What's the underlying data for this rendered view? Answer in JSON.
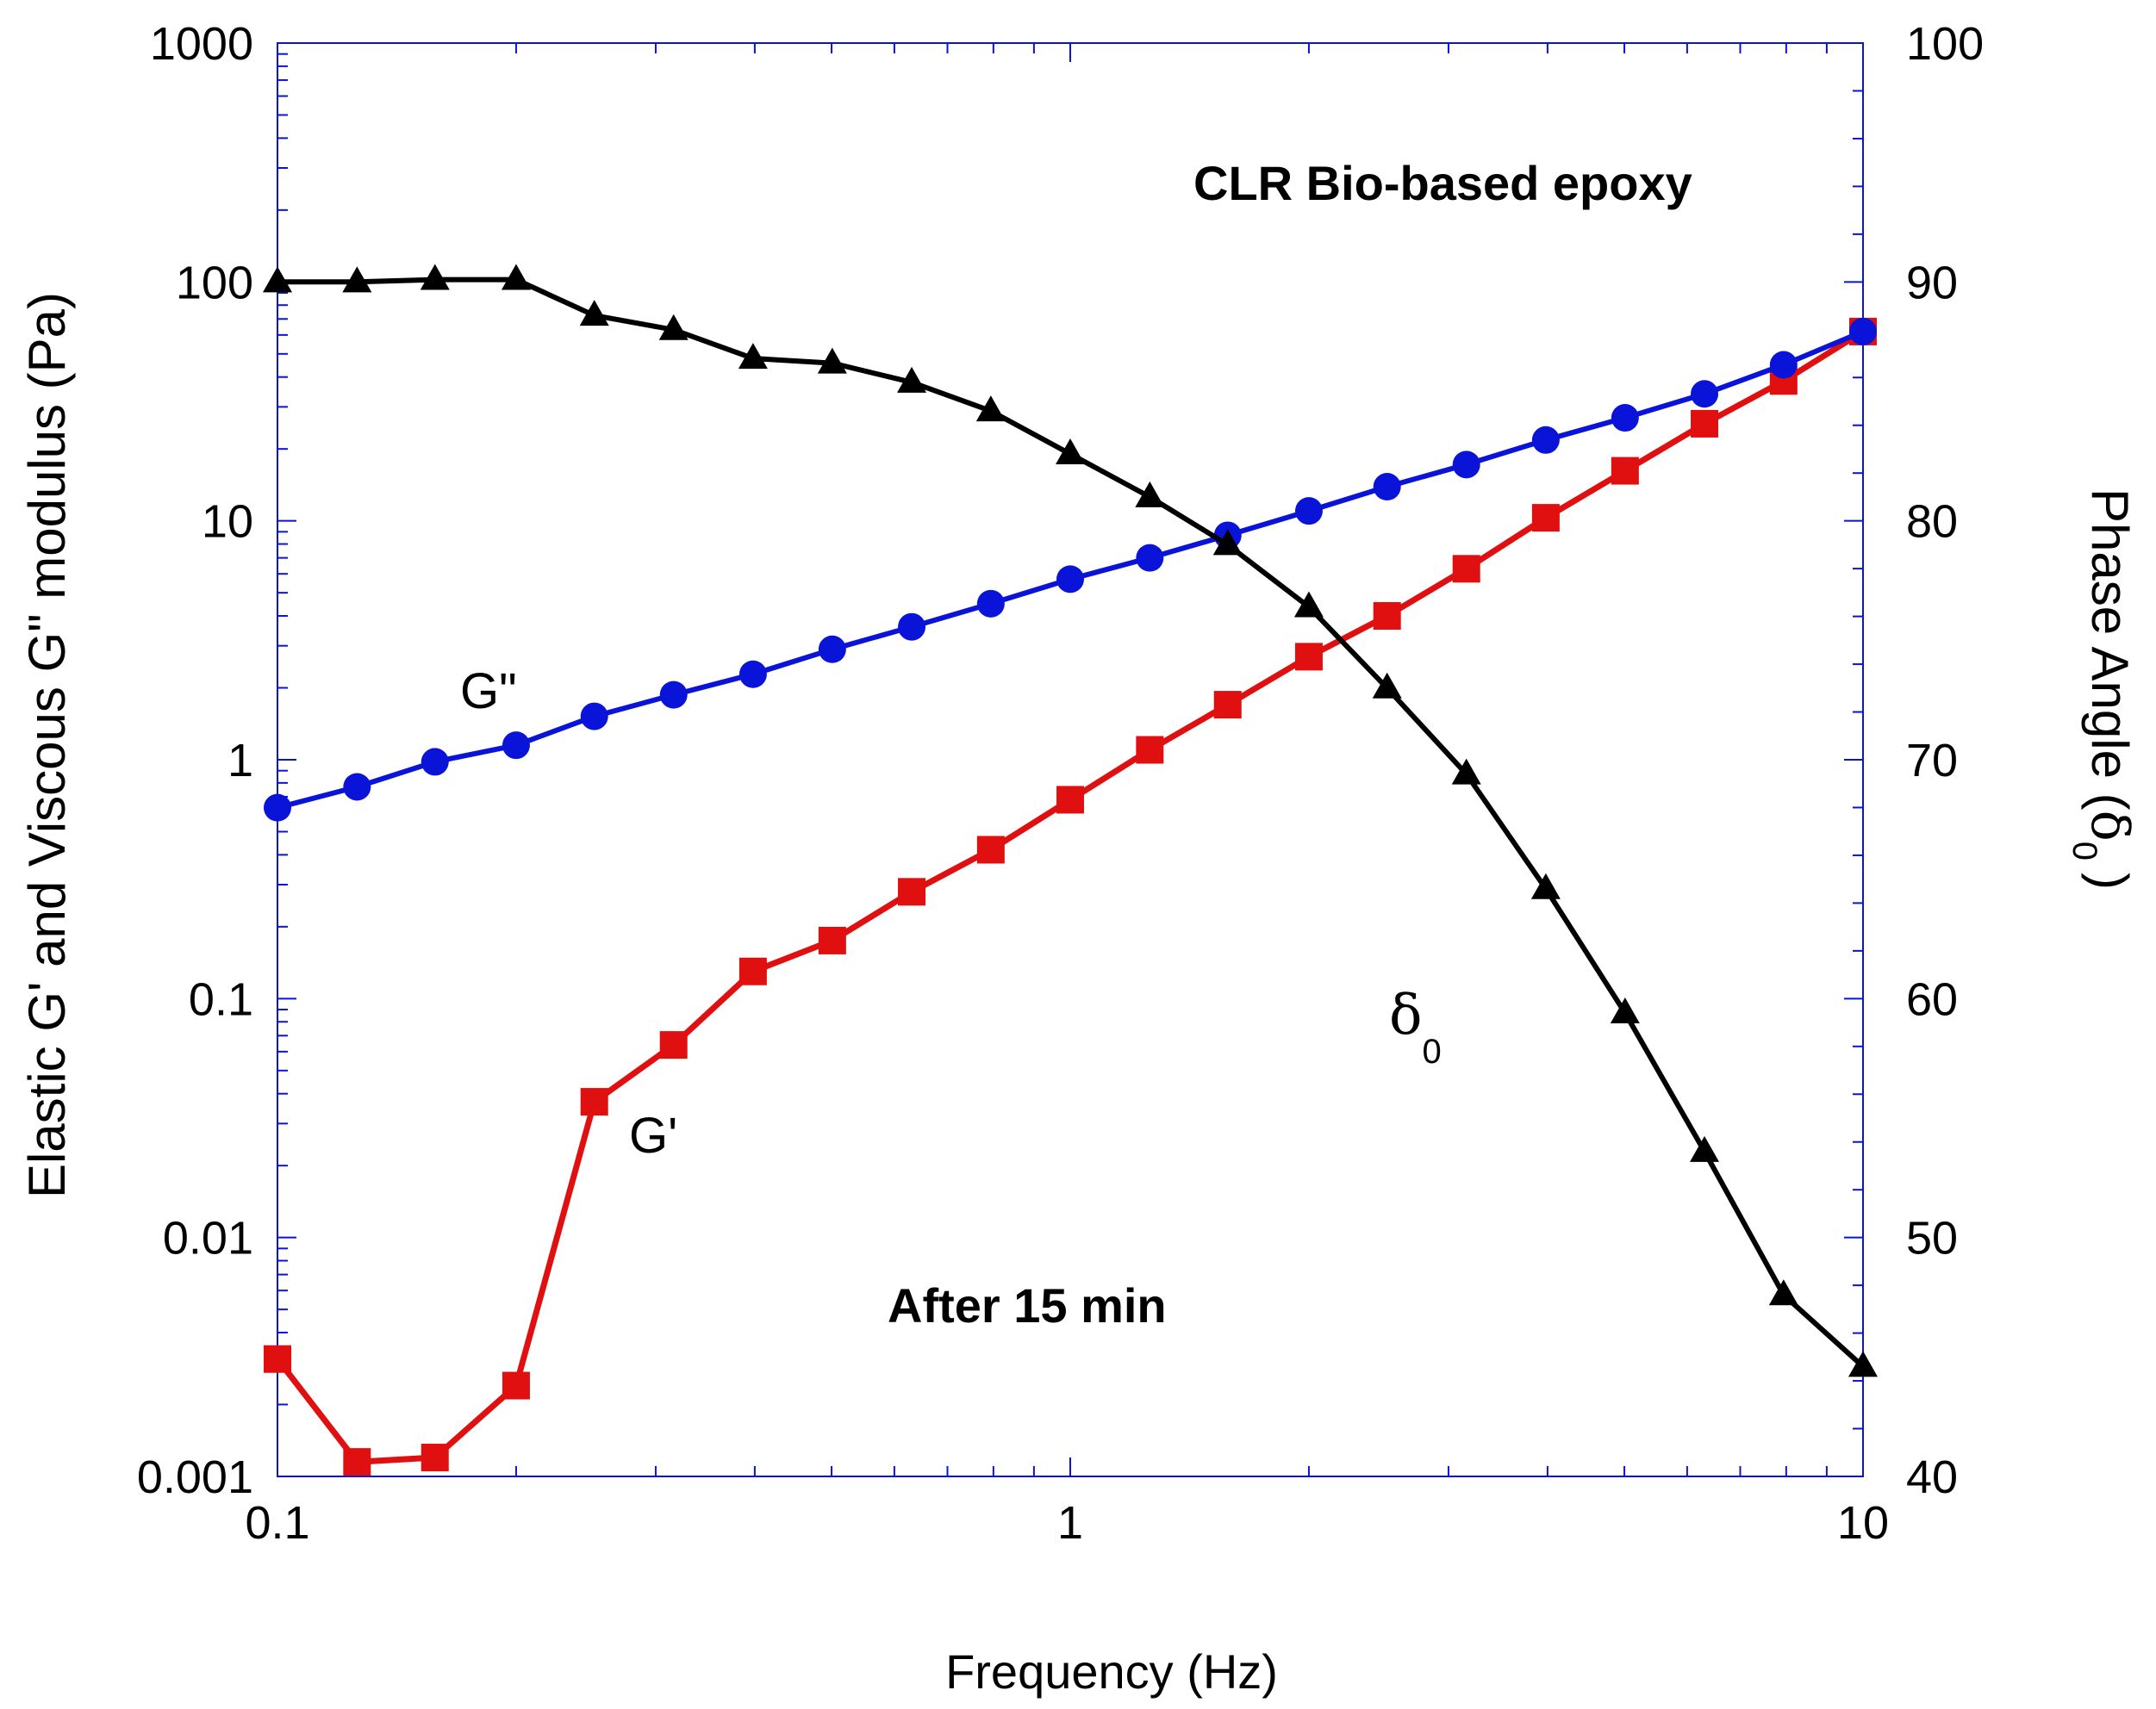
{
  "chart_data": {
    "type": "line",
    "title": "",
    "xlabel": "Frequency  (Hz)",
    "ylabel": "Elastic G' and Viscous G\" modulus (Pa)",
    "y2label_prefix": "Phase Angle (",
    "y2label_symbol": "δ",
    "y2label_sub": "0",
    "y2label_suffix": ")",
    "xscale": "log",
    "yscale": "log",
    "xlim": [
      0.1,
      10
    ],
    "ylim": [
      0.001,
      1000
    ],
    "y2lim": [
      40,
      100
    ],
    "x_ticks": [
      {
        "value": 0.1,
        "label": "0.1"
      },
      {
        "value": 1,
        "label": "1"
      },
      {
        "value": 10,
        "label": "10"
      }
    ],
    "y_ticks": [
      {
        "value": 0.001,
        "label": "0.001"
      },
      {
        "value": 0.01,
        "label": "0.01"
      },
      {
        "value": 0.1,
        "label": "0.1"
      },
      {
        "value": 1,
        "label": "1"
      },
      {
        "value": 10,
        "label": "10"
      },
      {
        "value": 100,
        "label": "100"
      },
      {
        "value": 1000,
        "label": "1000"
      }
    ],
    "y2_ticks": [
      {
        "value": 40,
        "label": "40"
      },
      {
        "value": 50,
        "label": "50"
      },
      {
        "value": 60,
        "label": "60"
      },
      {
        "value": 70,
        "label": "70"
      },
      {
        "value": 80,
        "label": "80"
      },
      {
        "value": 90,
        "label": "90"
      },
      {
        "value": 100,
        "label": "100"
      }
    ],
    "x": [
      0.1,
      0.126,
      0.158,
      0.2,
      0.251,
      0.316,
      0.398,
      0.501,
      0.631,
      0.794,
      1.0,
      1.26,
      1.58,
      2.0,
      2.51,
      3.16,
      3.98,
      5.01,
      6.31,
      7.94,
      10.0
    ],
    "series": [
      {
        "name": "G'",
        "axis": "left",
        "color": "#e01010",
        "marker": "square",
        "values": [
          0.0031,
          0.00115,
          0.0012,
          0.0024,
          0.037,
          0.064,
          0.13,
          0.175,
          0.28,
          0.42,
          0.68,
          1.1,
          1.7,
          2.7,
          4.0,
          6.3,
          10.3,
          16.2,
          25.5,
          38.5,
          62
        ]
      },
      {
        "name": "G\"",
        "axis": "left",
        "color": "#0a14d8",
        "marker": "circle",
        "values": [
          0.63,
          0.77,
          0.98,
          1.15,
          1.52,
          1.87,
          2.28,
          2.9,
          3.6,
          4.5,
          5.7,
          7.0,
          8.7,
          11.0,
          13.9,
          17.2,
          21.8,
          27.0,
          34.0,
          45.0,
          62
        ]
      },
      {
        "name": "δ0",
        "axis": "right",
        "color": "#000000",
        "marker": "triangle",
        "values": [
          90.0,
          90.0,
          90.1,
          90.1,
          88.6,
          88.0,
          86.8,
          86.6,
          85.8,
          84.6,
          82.8,
          81.0,
          79.0,
          76.4,
          73.0,
          69.4,
          64.6,
          59.4,
          53.6,
          47.6,
          44.6
        ]
      }
    ],
    "annotations": {
      "title_text": "CLR Bio-based epoxy",
      "time_text": "After 15 min",
      "gpp_label": "G\"",
      "gp_label": "G'",
      "delta_symbol": "δ",
      "delta_sub": "0"
    },
    "colors": {
      "frame": "#0a14d8",
      "text": "#000000"
    }
  }
}
